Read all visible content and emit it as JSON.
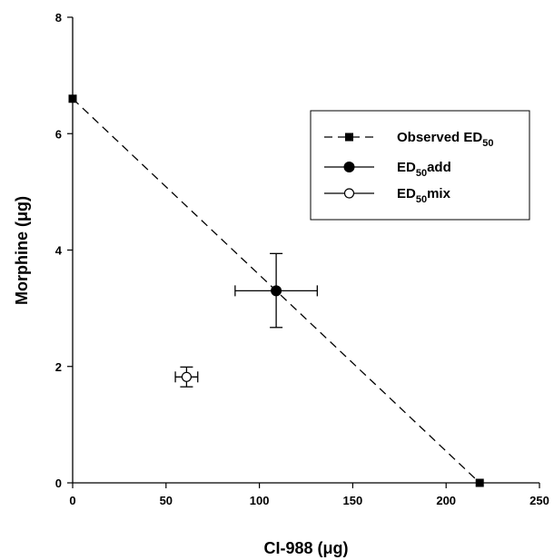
{
  "chart_data": {
    "type": "scatter",
    "xlabel": {
      "text": "CI-988 (",
      "unit": "μg",
      "close": ")"
    },
    "ylabel": {
      "text": "Morphine (",
      "unit": "μg",
      "close": ")"
    },
    "xlim": [
      0,
      250
    ],
    "ylim": [
      0,
      8
    ],
    "x_ticks": [
      "0",
      "50",
      "100",
      "150",
      "200",
      "250"
    ],
    "x_tick_values": [
      0,
      50,
      100,
      150,
      200,
      250
    ],
    "y_ticks": [
      "0",
      "2",
      "4",
      "6",
      "8"
    ],
    "y_tick_values": [
      0,
      2,
      4,
      6,
      8
    ],
    "grid": false,
    "legend_position": "top-right",
    "series": [
      {
        "name": "Observed ED50",
        "legend": {
          "main": "Observed ED",
          "sub": "50",
          "suffix": ""
        },
        "marker": "filled-square",
        "line": "dashed",
        "points": [
          {
            "x": 0,
            "y": 6.6
          },
          {
            "x": 218,
            "y": 0
          }
        ]
      },
      {
        "name": "ED50add",
        "legend": {
          "main": "ED",
          "sub": "50",
          "suffix": "add"
        },
        "marker": "filled-circle",
        "line": "none",
        "points": [
          {
            "x": 109,
            "y": 3.3,
            "x_err": [
              87,
              131
            ],
            "y_err": [
              2.67,
              3.94
            ]
          }
        ]
      },
      {
        "name": "ED50mix",
        "legend": {
          "main": "ED",
          "sub": "50",
          "suffix": "mix"
        },
        "marker": "open-circle",
        "line": "none",
        "points": [
          {
            "x": 61,
            "y": 1.82,
            "x_err": [
              55,
              67
            ],
            "y_err": [
              1.65,
              1.99
            ]
          }
        ]
      }
    ],
    "colors": {
      "axis": "#000000",
      "marker": "#000000",
      "background": "#ffffff"
    }
  }
}
